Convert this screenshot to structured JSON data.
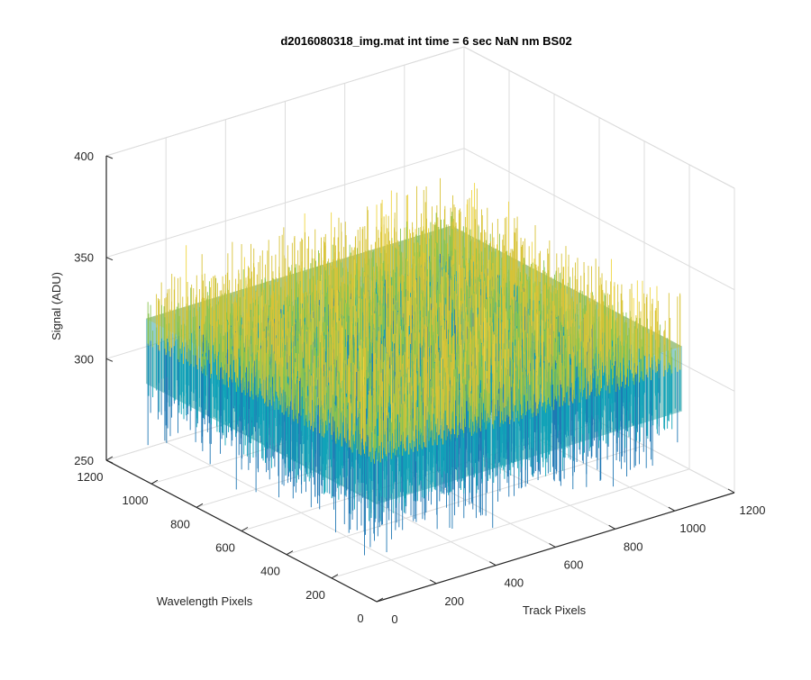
{
  "chart_data": {
    "type": "surface",
    "title": "d2016080318_img.mat int time = 6 sec  NaN nm BS02",
    "xlabel": "Track Pixels",
    "ylabel": "Wavelength Pixels",
    "zlabel": "Signal (ADU)",
    "xlim": [
      0,
      1200
    ],
    "ylim": [
      0,
      1200
    ],
    "zlim": [
      250,
      400
    ],
    "x_ticks": [
      0,
      200,
      400,
      600,
      800,
      1000,
      1200
    ],
    "y_ticks": [
      0,
      200,
      400,
      600,
      800,
      1000,
      1200
    ],
    "z_ticks": [
      250,
      300,
      350,
      400
    ],
    "x_tick_labels": [
      "0",
      "200",
      "400",
      "600",
      "800",
      "1000",
      "1200"
    ],
    "y_tick_labels": [
      "0",
      "200",
      "400",
      "600",
      "800",
      "1000",
      "1200"
    ],
    "z_tick_labels": [
      "250",
      "300",
      "350",
      "400"
    ],
    "surface": {
      "x_range": [
        0,
        1024
      ],
      "y_range": [
        0,
        1024
      ],
      "mean_signal": 318,
      "noise_min": 268,
      "noise_max": 375,
      "colormap": [
        "#1f77b4",
        "#11a3b8",
        "#2bb59b",
        "#8ac44f",
        "#d8c337",
        "#f0d640"
      ]
    },
    "grid": true,
    "box": true
  }
}
